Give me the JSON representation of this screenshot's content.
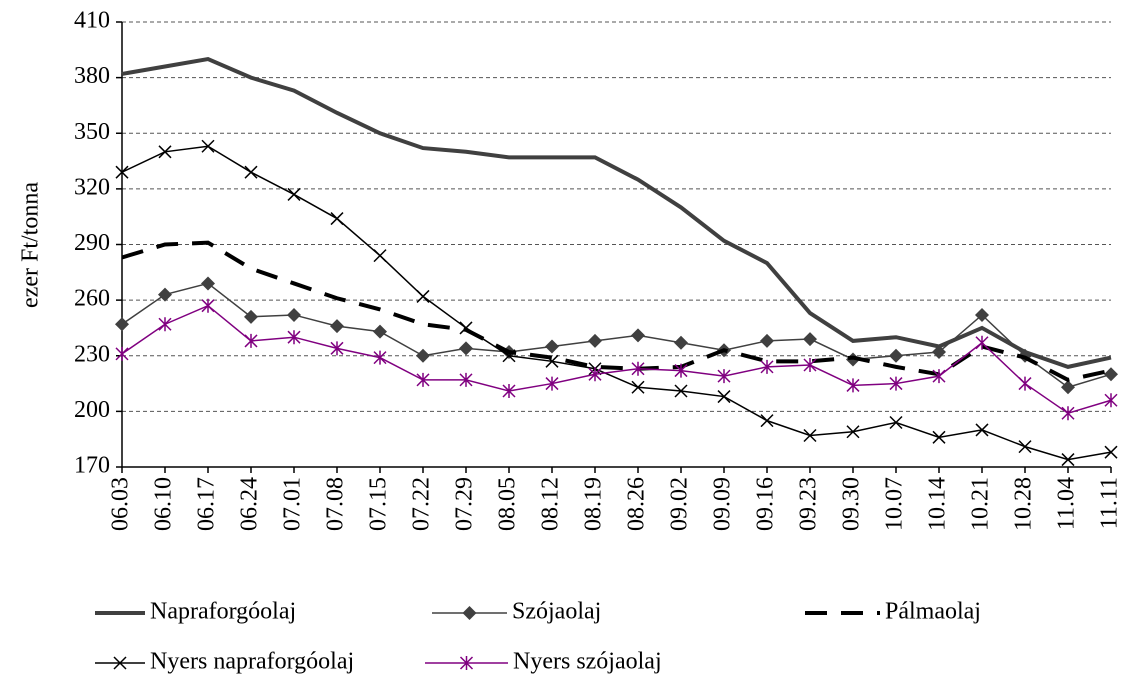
{
  "chart_data": {
    "type": "line",
    "y_label": "ezer Ft/tonna",
    "categories": [
      "06.03",
      "06.10",
      "06.17",
      "06.24",
      "07.01",
      "07.08",
      "07.15",
      "07.22",
      "07.29",
      "08.05",
      "08.12",
      "08.19",
      "08.26",
      "09.02",
      "09.09",
      "09.16",
      "09.23",
      "09.30",
      "10.07",
      "10.14",
      "10.21",
      "10.28",
      "11.04",
      "11.11"
    ],
    "ylim": [
      170,
      410
    ],
    "yticks": [
      170,
      200,
      230,
      260,
      290,
      320,
      350,
      380,
      410
    ],
    "grid": true,
    "series": [
      {
        "name": "Napraforgóolaj",
        "color": "#404040",
        "marker": "none",
        "dashed": false,
        "thick": true,
        "values": [
          382,
          386,
          390,
          380,
          373,
          361,
          350,
          342,
          340,
          337,
          337,
          337,
          325,
          310,
          292,
          280,
          253,
          238,
          240,
          235,
          245,
          232,
          224,
          229
        ]
      },
      {
        "name": "Szójaolaj",
        "color": "#404040",
        "marker": "diamond",
        "dashed": false,
        "thick": false,
        "values": [
          247,
          263,
          269,
          251,
          252,
          246,
          243,
          230,
          234,
          232,
          235,
          238,
          241,
          237,
          233,
          238,
          239,
          228,
          230,
          232,
          252,
          230,
          213,
          220
        ]
      },
      {
        "name": "Pálmaolaj",
        "color": "#000000",
        "marker": "none",
        "dashed": true,
        "thick": true,
        "values": [
          283,
          290,
          291,
          277,
          269,
          261,
          255,
          247,
          244,
          232,
          229,
          224,
          223,
          224,
          233,
          227,
          227,
          229,
          224,
          220,
          235,
          229,
          217,
          222
        ]
      },
      {
        "name": "Nyers napraforgóolaj",
        "color": "#000000",
        "marker": "x",
        "dashed": false,
        "thick": false,
        "values": [
          329,
          340,
          343,
          329,
          317,
          304,
          284,
          262,
          245,
          230,
          227,
          223,
          213,
          211,
          208,
          195,
          187,
          189,
          194,
          186,
          190,
          181,
          174,
          178
        ]
      },
      {
        "name": "Nyers szójaolaj",
        "color": "#800080",
        "marker": "star",
        "dashed": false,
        "thick": false,
        "values": [
          231,
          247,
          257,
          238,
          240,
          234,
          229,
          217,
          217,
          211,
          215,
          220,
          223,
          222,
          219,
          224,
          225,
          214,
          215,
          219,
          237,
          215,
          199,
          206
        ]
      }
    ]
  }
}
